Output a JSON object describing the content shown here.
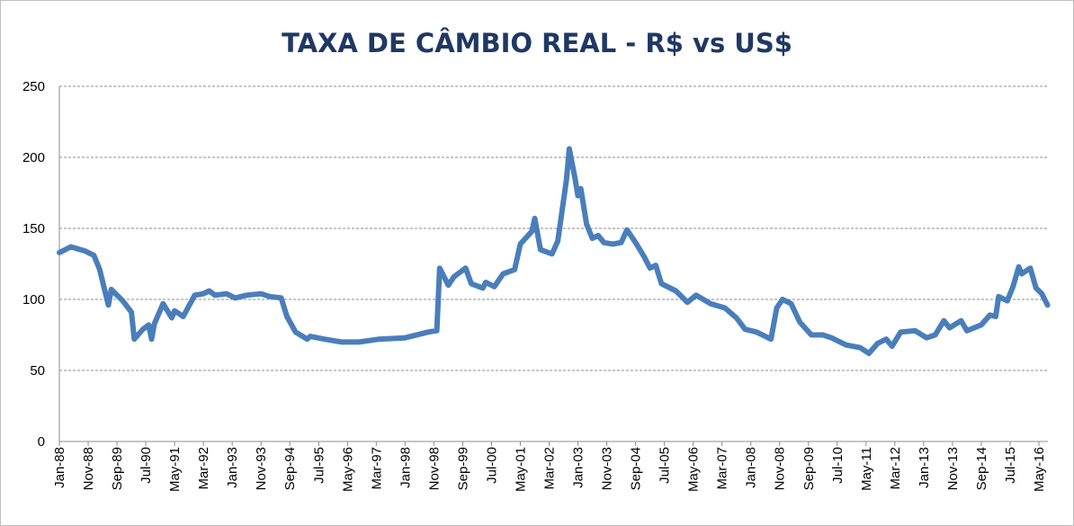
{
  "chart_data": {
    "type": "line",
    "title": "TAXA DE CÂMBIO REAL - R$ vs US$",
    "xlabel": "",
    "ylabel": "",
    "ylim": [
      0,
      250
    ],
    "yticks": [
      0,
      50,
      100,
      150,
      200,
      250
    ],
    "xlim": [
      "1988-01",
      "1016-08"
    ],
    "xticks": [
      "Jan-88",
      "Nov-88",
      "Sep-89",
      "Jul-90",
      "May-91",
      "Mar-92",
      "Jan-93",
      "Nov-93",
      "Sep-94",
      "Jul-95",
      "May-96",
      "Mar-97",
      "Jan-98",
      "Nov-98",
      "Sep-99",
      "Jul-00",
      "May-01",
      "Mar-02",
      "Jan-03",
      "Nov-03",
      "Sep-04",
      "Jul-05",
      "May-06",
      "Mar-07",
      "Jan-08",
      "Nov-08",
      "Sep-09",
      "Jul-10",
      "May-11",
      "Mar-12",
      "Jan-13",
      "Nov-13",
      "Sep-14",
      "Jul-15",
      "May-16"
    ],
    "grid": true,
    "legend": "none",
    "colors": {
      "line": "#4a7ebb",
      "grid": "#8c8c8c",
      "title": "#1f3864"
    },
    "series": [
      {
        "name": "Taxa de câmbio real",
        "x_months_since_jan88": [
          0,
          4,
          9,
          12,
          14,
          17,
          18,
          22,
          25,
          26,
          29,
          31,
          32,
          33,
          36,
          39,
          40,
          43,
          47,
          50,
          52,
          54,
          58,
          61,
          65,
          70,
          73,
          77,
          79,
          82,
          86,
          87,
          92,
          98,
          104,
          111,
          120,
          128,
          131,
          132,
          135,
          137,
          141,
          143,
          147,
          148,
          151,
          154,
          158,
          160,
          164,
          165,
          167,
          171,
          173,
          176,
          177,
          179,
          180,
          181,
          183,
          185,
          187,
          189,
          192,
          195,
          197,
          200,
          203,
          205,
          207,
          209,
          214,
          216,
          218,
          221,
          226,
          231,
          235,
          238,
          242,
          247,
          249,
          251,
          254,
          257,
          261,
          265,
          268,
          273,
          278,
          281,
          284,
          287,
          289,
          292,
          297,
          301,
          304,
          307,
          309,
          313,
          315,
          320,
          323,
          325,
          326,
          329,
          331,
          333,
          334,
          337,
          339,
          341,
          343
        ],
        "values": [
          133,
          137,
          134,
          131,
          121,
          96,
          107,
          99,
          91,
          72,
          79,
          82,
          72,
          83,
          97,
          87,
          92,
          88,
          103,
          104,
          106,
          103,
          104,
          101,
          103,
          104,
          102,
          101,
          88,
          77,
          72,
          74,
          72,
          70,
          70,
          72,
          73,
          77,
          78,
          122,
          110,
          116,
          122,
          111,
          108,
          112,
          109,
          118,
          121,
          139,
          148,
          157,
          135,
          132,
          141,
          184,
          206,
          185,
          173,
          178,
          153,
          143,
          145,
          140,
          139,
          140,
          149,
          140,
          130,
          122,
          124,
          111,
          106,
          102,
          98,
          103,
          97,
          94,
          87,
          79,
          77,
          72,
          94,
          100,
          97,
          84,
          75,
          75,
          73,
          68,
          66,
          62,
          69,
          72,
          67,
          77,
          78,
          73,
          75,
          85,
          80,
          85,
          78,
          82,
          89,
          88,
          102,
          99,
          109,
          123,
          118,
          122,
          108,
          104,
          96
        ]
      }
    ]
  }
}
